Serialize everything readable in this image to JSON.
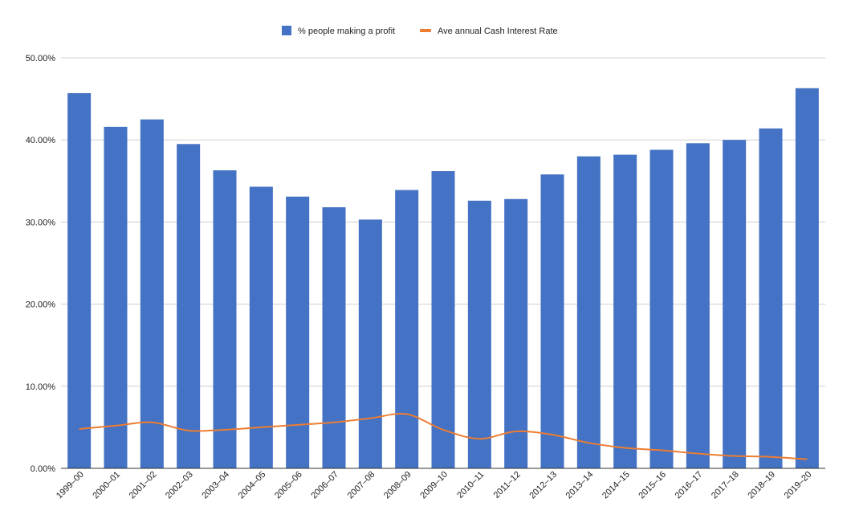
{
  "chart_data": {
    "type": "bar",
    "title": "",
    "xlabel": "",
    "ylabel": "",
    "ylim": [
      0,
      50
    ],
    "y_ticks": [
      "0.00%",
      "10.00%",
      "20.00%",
      "30.00%",
      "40.00%",
      "50.00%"
    ],
    "grid": true,
    "legend_position": "top-center",
    "categories": [
      "1999–00",
      "2000–01",
      "2001–02",
      "2002–03",
      "2003–04",
      "2004–05",
      "2005–06",
      "2006–07",
      "2007–08",
      "2008–09",
      "2009–10",
      "2010–11",
      "2011–12",
      "2012–13",
      "2013–14",
      "2014–15",
      "2015–16",
      "2016–17",
      "2017–18",
      "2018–19",
      "2019–20"
    ],
    "series": [
      {
        "name": "% people making a profit",
        "type": "bar",
        "color": "#4472c4",
        "values": [
          45.7,
          41.6,
          42.5,
          39.5,
          36.3,
          34.3,
          33.1,
          31.8,
          30.3,
          33.9,
          36.2,
          32.6,
          32.8,
          35.8,
          38.0,
          38.2,
          38.8,
          39.6,
          40.0,
          41.4,
          46.3
        ]
      },
      {
        "name": "Ave annual Cash Interest Rate",
        "type": "line",
        "color": "#ed7d31",
        "values": [
          4.8,
          5.2,
          5.6,
          4.6,
          4.7,
          5.0,
          5.3,
          5.6,
          6.1,
          6.6,
          4.7,
          3.6,
          4.5,
          4.1,
          3.1,
          2.5,
          2.2,
          1.8,
          1.5,
          1.4,
          1.1
        ]
      }
    ]
  }
}
